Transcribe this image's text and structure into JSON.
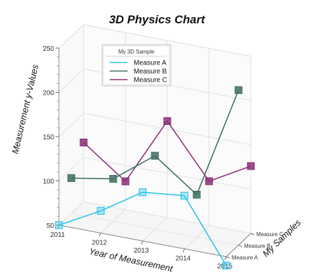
{
  "chart_data": {
    "type": "line",
    "title": "3D Physics Chart",
    "xlabel": "Year of Measurement",
    "ylabel": "Measurement y-Values",
    "zlabel": "My Samples",
    "x_ticks": [
      "2011",
      "2012",
      "2013",
      "2014",
      "2015"
    ],
    "y_ticks": [
      "50",
      "100",
      "150",
      "200",
      "250"
    ],
    "z_ticks": [
      "Measure A",
      "Measure B",
      "Measure C"
    ],
    "ylim": [
      50,
      250
    ],
    "xlim": [
      2011,
      2015
    ],
    "grid": true,
    "legend": {
      "title": "My 3D Sample",
      "placement": "top-center"
    },
    "series": [
      {
        "name": "Measure A",
        "color": "#29c3ea",
        "x": [
          2011,
          2012,
          2013,
          2014,
          2015
        ],
        "y": [
          50,
          75,
          105,
          110,
          40
        ]
      },
      {
        "name": "Measure B",
        "color": "#3f6f62",
        "x": [
          2011,
          2012,
          2013,
          2014,
          2015
        ],
        "y": [
          90,
          98,
          133,
          98,
          225
        ]
      },
      {
        "name": "Measure C",
        "color": "#8b2f78",
        "x": [
          2011,
          2012,
          2013,
          2014,
          2015
        ],
        "y": [
          117,
          82,
          159,
          100,
          126
        ]
      }
    ]
  }
}
